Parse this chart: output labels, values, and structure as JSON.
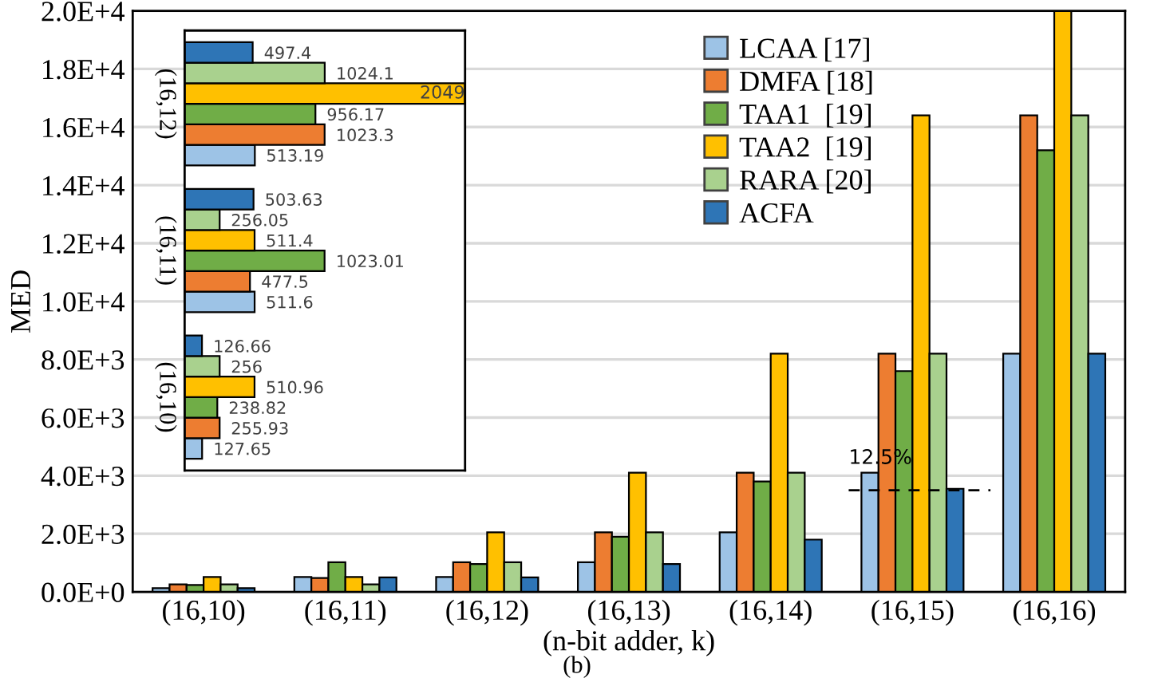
{
  "chart_data": [
    {
      "type": "bar",
      "xlabel": "(n-bit adder, k)",
      "ylabel": "MED",
      "categories": [
        "(16,10)",
        "(16,11)",
        "(16,12)",
        "(16,13)",
        "(16,14)",
        "(16,15)",
        "(16,16)"
      ],
      "series": [
        {
          "name": "LCAA [17]",
          "color": "#9dc3e6",
          "values": [
            130,
            510,
            510,
            1020,
            2050,
            4100,
            8200
          ]
        },
        {
          "name": "DMFA [18]",
          "color": "#ed7d31",
          "values": [
            260,
            480,
            1020,
            2050,
            4100,
            8200,
            16400
          ]
        },
        {
          "name": "TAA1  [19]",
          "color": "#70ad47",
          "values": [
            240,
            1020,
            960,
            1900,
            3800,
            7600,
            15200
          ]
        },
        {
          "name": "TAA2  [19]",
          "color": "#ffc000",
          "values": [
            510,
            510,
            2050,
            4100,
            8200,
            16400,
            20000
          ]
        },
        {
          "name": "RARA [20]",
          "color": "#a9d18e",
          "values": [
            260,
            260,
            1020,
            2050,
            4100,
            8200,
            16400
          ]
        },
        {
          "name": "ACFA",
          "color": "#2e75b6",
          "values": [
            130,
            500,
            500,
            960,
            1800,
            3550,
            8200
          ]
        }
      ],
      "ylim": [
        0,
        20000
      ],
      "yticks": [
        {
          "value": 0,
          "label": "0.0E+0"
        },
        {
          "value": 2000,
          "label": "2.0E+3"
        },
        {
          "value": 4000,
          "label": "4.0E+3"
        },
        {
          "value": 6000,
          "label": "6.0E+3"
        },
        {
          "value": 8000,
          "label": "8.0E+3"
        },
        {
          "value": 10000,
          "label": "1.0E+4"
        },
        {
          "value": 12000,
          "label": "1.2E+4"
        },
        {
          "value": 14000,
          "label": "1.4E+4"
        },
        {
          "value": 16000,
          "label": "1.6E+4"
        },
        {
          "value": 18000,
          "label": "1.8E+4"
        },
        {
          "value": 20000,
          "label": "2.0E+4"
        }
      ],
      "ref_lines": [
        {
          "axis": "y",
          "value": 3500,
          "line_style": "dashed",
          "color": "#000000"
        }
      ],
      "annotations": [
        "12.5%",
        "(b)"
      ],
      "grid": "y",
      "legend": "top right"
    },
    {
      "type": "bar",
      "orientation": "horizontal",
      "categories": [
        "(16,12)",
        "(16,11)",
        "(16,10)"
      ],
      "series": [
        {
          "color": "#9dc3e6",
          "values": [
            513.19,
            511.6,
            127.65
          ]
        },
        {
          "color": "#ed7d31",
          "values": [
            1023.3,
            477.5,
            255.93
          ]
        },
        {
          "color": "#70ad47",
          "values": [
            956.17,
            1023.01,
            238.82
          ]
        },
        {
          "color": "#ffc000",
          "values": [
            2049,
            511.4,
            510.96
          ]
        },
        {
          "color": "#a9d18e",
          "values": [
            1024.1,
            256.05,
            256
          ]
        },
        {
          "color": "#2e75b6",
          "values": [
            497.4,
            503.63,
            126.66
          ]
        }
      ],
      "xlim": [
        0,
        2050
      ],
      "data_labels": true,
      "tick_labels": "y"
    }
  ]
}
